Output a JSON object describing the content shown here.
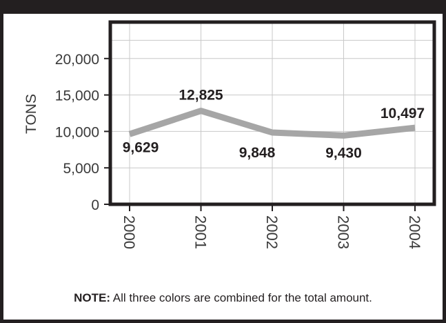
{
  "chart_data": {
    "type": "line",
    "title": "",
    "xlabel": "",
    "ylabel": "TONS",
    "categories": [
      "2000",
      "2001",
      "2002",
      "2003",
      "2004"
    ],
    "series": [
      {
        "values": [
          9629,
          12825,
          9848,
          9430,
          10497
        ]
      }
    ],
    "data_labels": [
      "9,629",
      "12,825",
      "9,848",
      "9,430",
      "10,497"
    ],
    "y_tick_labels": [
      "0",
      "5,000",
      "10,000",
      "15,000",
      "20,000"
    ],
    "yticks": [
      0,
      5000,
      10000,
      15000,
      20000
    ],
    "ylim": [
      0,
      25000
    ],
    "grid": true,
    "legend": "none",
    "line_color": "#a6a6a6"
  },
  "note": {
    "label": "NOTE:",
    "text": "All three colors are combined for the total amount."
  },
  "colors": {
    "frame": "#231f20",
    "grid": "#c8c8c8",
    "text": "#231f20",
    "tick_text": "#3a3a3a"
  }
}
